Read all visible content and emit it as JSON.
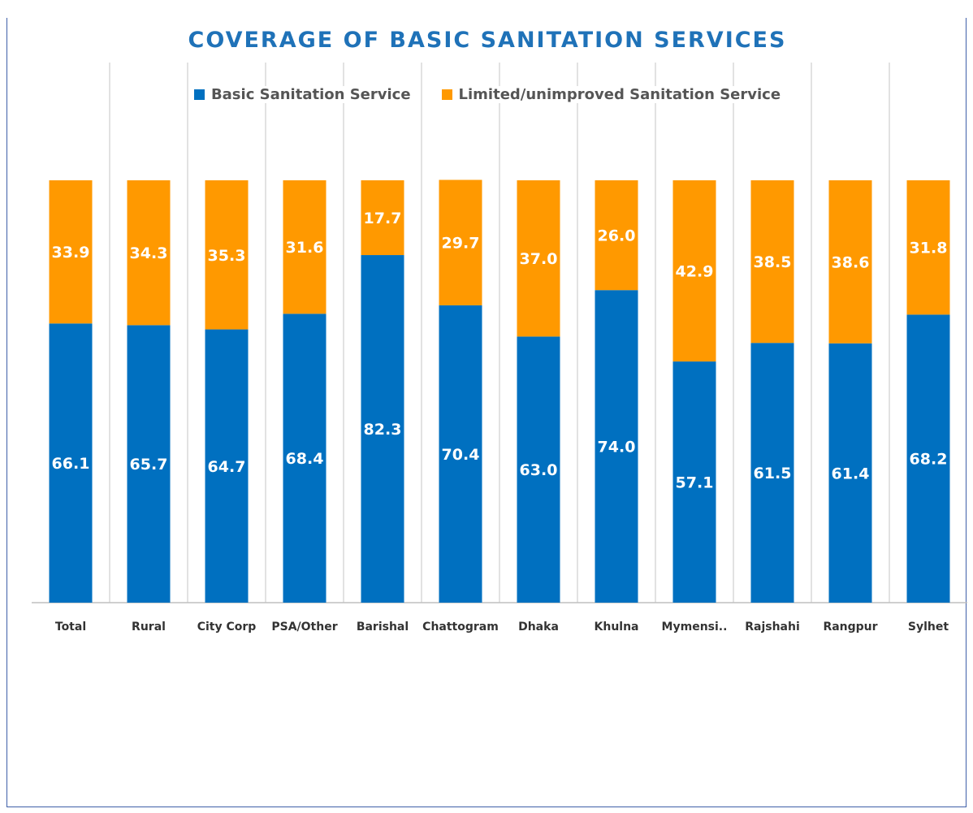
{
  "chart_data": {
    "type": "bar",
    "stacked": true,
    "title": "COVERAGE OF BASIC SANITATION SERVICES",
    "categories": [
      "Total",
      "Rural",
      "City Corp",
      "PSA/Other",
      "Barishal",
      "Chattogram",
      "Dhaka",
      "Khulna",
      "Mymensi..",
      "Rajshahi",
      "Rangpur",
      "Sylhet"
    ],
    "series": [
      {
        "name": "Basic Sanitation Service",
        "color": "#0070c0",
        "values": [
          66.1,
          65.7,
          64.7,
          68.4,
          82.3,
          70.4,
          63.0,
          74.0,
          57.1,
          61.5,
          61.4,
          68.2
        ]
      },
      {
        "name": "Limited/unimproved Sanitation Service",
        "color": "#ff9900",
        "values": [
          33.9,
          34.3,
          35.3,
          31.6,
          17.7,
          29.7,
          37.0,
          26.0,
          42.9,
          38.5,
          38.6,
          31.8
        ]
      }
    ],
    "xlabel": "",
    "ylabel": "",
    "ylim": [
      0,
      100
    ],
    "legend": "top-center",
    "grid": "vertical"
  }
}
